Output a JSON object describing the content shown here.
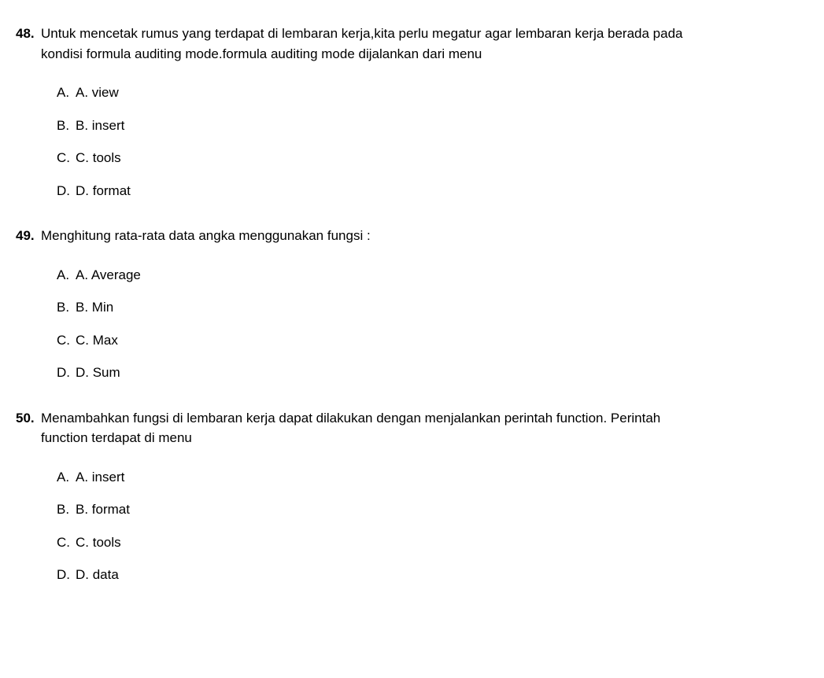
{
  "questions": [
    {
      "number": "48.",
      "text": "Untuk mencetak rumus yang terdapat di lembaran kerja,kita perlu megatur agar lembaran kerja berada pada kondisi formula auditing mode.formula auditing mode dijalankan dari menu",
      "options": [
        {
          "letter": "A.",
          "text": "A. view"
        },
        {
          "letter": "B.",
          "text": "B. insert"
        },
        {
          "letter": "C.",
          "text": "C. tools"
        },
        {
          "letter": "D.",
          "text": "D. format"
        }
      ]
    },
    {
      "number": "49.",
      "text": "Menghitung rata-rata data angka menggunakan fungsi :",
      "options": [
        {
          "letter": "A.",
          "text": "A. Average"
        },
        {
          "letter": "B.",
          "text": "B. Min"
        },
        {
          "letter": "C.",
          "text": "C. Max"
        },
        {
          "letter": "D.",
          "text": "D. Sum"
        }
      ]
    },
    {
      "number": "50.",
      "text": "Menambahkan fungsi di lembaran kerja dapat dilakukan dengan menjalankan perintah function. Perintah function terdapat di menu",
      "options": [
        {
          "letter": "A.",
          "text": "A. insert"
        },
        {
          "letter": "B.",
          "text": "B. format"
        },
        {
          "letter": "C.",
          "text": "C. tools"
        },
        {
          "letter": "D.",
          "text": "D. data"
        }
      ]
    }
  ]
}
